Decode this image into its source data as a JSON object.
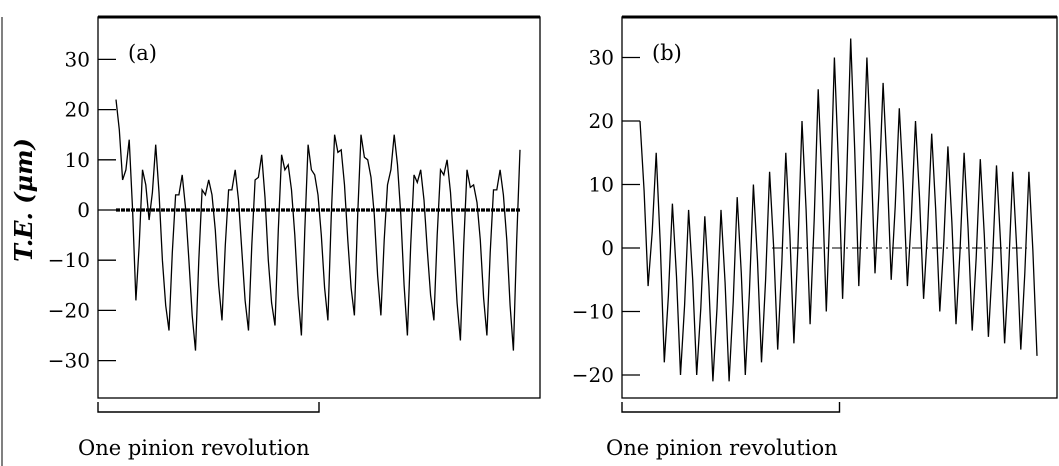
{
  "figure": {
    "ylabel": "T.E. (μm)",
    "revolution_label": "One pinion revolution"
  },
  "chart_data": [
    {
      "type": "line",
      "panel_label": "(a)",
      "ylabel": "T.E. (μm)",
      "xlabel": "",
      "ylim": [
        -38,
        38
      ],
      "yticks": [
        30,
        20,
        10,
        0,
        -10,
        -20,
        -30
      ],
      "ytick_labels": [
        "30",
        "20",
        "10",
        "0",
        "−10",
        "−20",
        "−30"
      ],
      "teeth_count": 62,
      "revolution_fraction": 0.5,
      "annotation": "One pinion revolution",
      "series": [
        {
          "values": [
            22,
            6,
            14,
            -18,
            8,
            -2,
            13,
            -10,
            -24,
            3,
            7,
            -10,
            -28,
            4,
            6,
            -4,
            -22,
            4,
            8,
            -8,
            -24,
            6,
            11,
            -10,
            -23,
            11,
            9,
            -5,
            -25,
            13,
            7,
            -5,
            -22,
            15,
            12,
            -6,
            -21,
            15,
            10,
            -1,
            -21,
            5,
            15,
            -1,
            -25,
            7,
            8,
            -8,
            -22,
            8,
            10,
            -7,
            -26,
            8,
            5,
            -6,
            -25,
            4,
            8,
            -6,
            -28,
            12
          ]
        },
        {
          "values": [
            0,
            0
          ]
        }
      ]
    },
    {
      "type": "line",
      "panel_label": "(b)",
      "ylabel": "",
      "xlabel": "",
      "ylim": [
        -23,
        35
      ],
      "yticks": [
        30,
        20,
        10,
        0,
        -10,
        -20
      ],
      "ytick_labels": [
        "30",
        "20",
        "10",
        "0",
        "−10",
        "−20"
      ],
      "teeth_count": 50,
      "revolution_fraction": 0.5,
      "annotation": "One pinion revolution",
      "series": [
        {
          "values": [
            20,
            -6,
            15,
            -18,
            7,
            -20,
            6,
            -20,
            5,
            -21,
            6,
            -21,
            8,
            -20,
            10,
            -18,
            12,
            -16,
            15,
            -15,
            20,
            -12,
            25,
            -10,
            30,
            -8,
            33,
            -6,
            30,
            -4,
            26,
            -5,
            22,
            -6,
            20,
            -8,
            18,
            -10,
            16,
            -12,
            15,
            -13,
            14,
            -14,
            13,
            -15,
            12,
            -16,
            12,
            -17
          ]
        },
        {
          "values": [
            0,
            0
          ]
        }
      ]
    }
  ]
}
